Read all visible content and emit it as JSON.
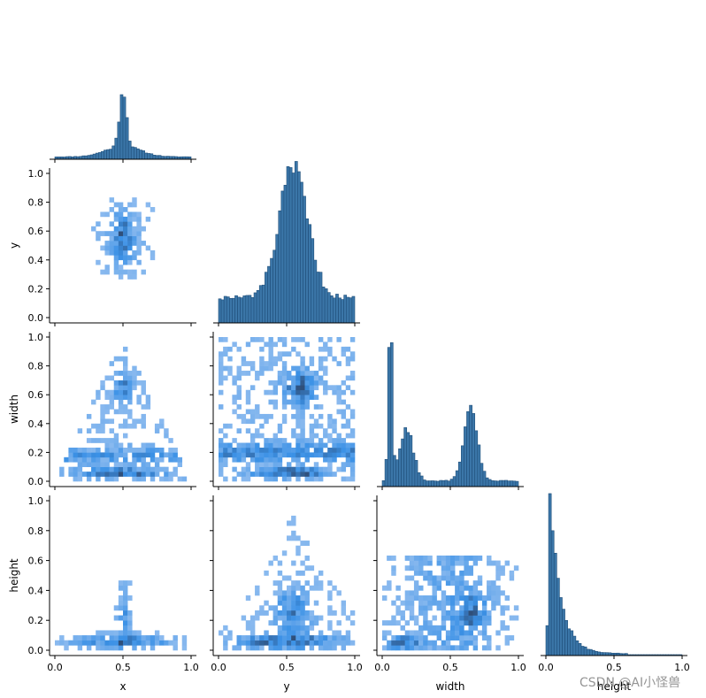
{
  "chart_data": {
    "type": "pairplot-histogram",
    "variables": [
      "x",
      "y",
      "width",
      "height"
    ],
    "layout": "corner",
    "colors": {
      "hist_fill": "#3b76a8",
      "hist_edge": "#1f4e79",
      "heat_low": "#a6c8f2",
      "heat_mid": "#3b91e6",
      "heat_high": "#2f4f7a"
    },
    "axes": {
      "xlabels": [
        "x",
        "y",
        "width",
        "height"
      ],
      "ylabels": [
        "",
        "y",
        "width",
        "height"
      ],
      "ticks": [
        "0.0",
        "0.2",
        "0.4",
        "0.6",
        "0.8",
        "1.0"
      ],
      "xticks": [
        "0.0",
        "0.5",
        "1.0"
      ],
      "range": [
        0,
        1
      ]
    },
    "marginals": {
      "x": {
        "bins": 50,
        "shape": "peak",
        "peak_at": 0.5,
        "desc": "sharp peak at 0.5 with tails"
      },
      "y": {
        "bins": 50,
        "shape": "broad",
        "peak_at": 0.55
      },
      "width": {
        "bins": 50,
        "shape": "bimodal",
        "modes": [
          0.06,
          0.65
        ]
      },
      "height": {
        "bins": 50,
        "shape": "right-skewed",
        "peak_at": 0.05
      }
    },
    "panels": [
      {
        "row": "y",
        "col": "x",
        "kind": "hist2d"
      },
      {
        "row": "width",
        "col": "x",
        "kind": "hist2d"
      },
      {
        "row": "width",
        "col": "y",
        "kind": "hist2d"
      },
      {
        "row": "height",
        "col": "x",
        "kind": "hist2d"
      },
      {
        "row": "height",
        "col": "y",
        "kind": "hist2d"
      },
      {
        "row": "height",
        "col": "width",
        "kind": "hist2d"
      }
    ]
  },
  "watermark": "CSDN @AI小怪兽"
}
